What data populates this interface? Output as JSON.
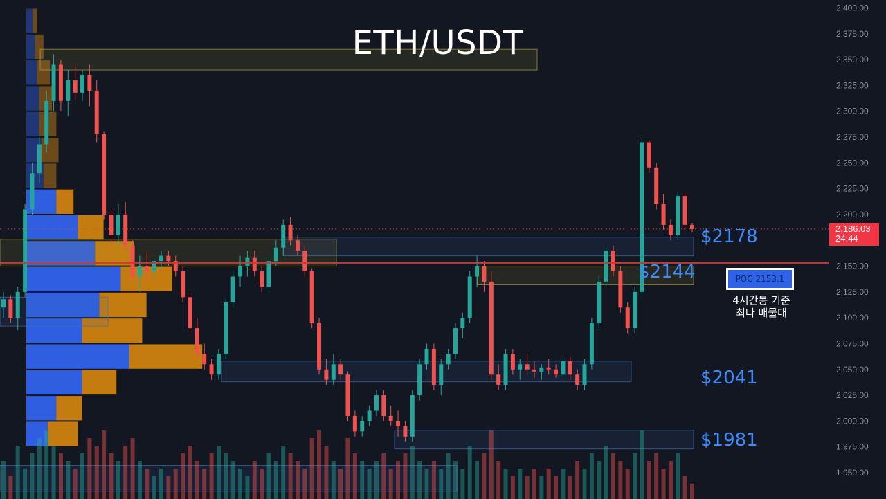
{
  "title": "ETH/USDT",
  "current_price": {
    "label": "2,186.03",
    "countdown": "24:44",
    "color": "#f23645"
  },
  "level_labels": [
    {
      "text": "$2178",
      "price": 2178
    },
    {
      "text": "$2144",
      "price": 2144
    },
    {
      "text": "$2041",
      "price": 2041
    },
    {
      "text": "$1981",
      "price": 1981
    }
  ],
  "poc": {
    "label": "POC  2153.1",
    "price": 2153.1,
    "note_line1": "4시간봉 기준",
    "note_line2": "최다 매물대"
  },
  "colors": {
    "background": "#131722",
    "up": "#26a69a",
    "down": "#ef5350",
    "poc_line": "#e0302d",
    "volume_profile_buy": "#2f5fe0",
    "volume_profile_sell": "#d8870f",
    "level_text": "#3d8bfd"
  },
  "chart_data": {
    "type": "candlestick",
    "title": "ETH/USDT",
    "ylim": [
      1935,
      2405
    ],
    "y_ticks": [
      "2,400.00",
      "2,375.00",
      "2,350.00",
      "2,325.00",
      "2,300.00",
      "2,275.00",
      "2,250.00",
      "2,225.00",
      "2,200.00",
      "2,175.00",
      "2,150.00",
      "2,125.00",
      "2,100.00",
      "2,075.00",
      "2,050.00",
      "2,025.00",
      "2,000.00",
      "1,975.00",
      "1,950.00"
    ],
    "y_tick_values": [
      2400,
      2375,
      2350,
      2325,
      2300,
      2275,
      2250,
      2225,
      2200,
      2175,
      2150,
      2125,
      2100,
      2075,
      2050,
      2025,
      2000,
      1975,
      1950
    ],
    "grid": false,
    "candles": [
      [
        2110,
        2125,
        2100,
        2118
      ],
      [
        2118,
        2122,
        2095,
        2100
      ],
      [
        2100,
        2130,
        2088,
        2125
      ],
      [
        2125,
        2210,
        2120,
        2205
      ],
      [
        2205,
        2250,
        2200,
        2240
      ],
      [
        2240,
        2275,
        2230,
        2268
      ],
      [
        2268,
        2320,
        2260,
        2310
      ],
      [
        2310,
        2355,
        2300,
        2345
      ],
      [
        2345,
        2350,
        2300,
        2310
      ],
      [
        2310,
        2340,
        2295,
        2330
      ],
      [
        2330,
        2345,
        2310,
        2318
      ],
      [
        2318,
        2340,
        2310,
        2335
      ],
      [
        2335,
        2345,
        2305,
        2320
      ],
      [
        2320,
        2330,
        2270,
        2278
      ],
      [
        2278,
        2280,
        2195,
        2200
      ],
      [
        2200,
        2205,
        2170,
        2180
      ],
      [
        2180,
        2210,
        2170,
        2200
      ],
      [
        2200,
        2212,
        2165,
        2170
      ],
      [
        2170,
        2175,
        2135,
        2140
      ],
      [
        2140,
        2160,
        2125,
        2150
      ],
      [
        2150,
        2165,
        2135,
        2145
      ],
      [
        2145,
        2158,
        2140,
        2155
      ],
      [
        2155,
        2165,
        2148,
        2160
      ],
      [
        2160,
        2165,
        2150,
        2155
      ],
      [
        2155,
        2160,
        2140,
        2145
      ],
      [
        2145,
        2150,
        2115,
        2120
      ],
      [
        2120,
        2125,
        2085,
        2090
      ],
      [
        2090,
        2100,
        2060,
        2065
      ],
      [
        2065,
        2075,
        2050,
        2055
      ],
      [
        2055,
        2060,
        2040,
        2045
      ],
      [
        2045,
        2070,
        2040,
        2065
      ],
      [
        2065,
        2120,
        2060,
        2115
      ],
      [
        2115,
        2145,
        2110,
        2140
      ],
      [
        2140,
        2160,
        2130,
        2150
      ],
      [
        2150,
        2165,
        2140,
        2158
      ],
      [
        2158,
        2165,
        2140,
        2145
      ],
      [
        2145,
        2150,
        2125,
        2130
      ],
      [
        2130,
        2160,
        2125,
        2155
      ],
      [
        2155,
        2175,
        2150,
        2168
      ],
      [
        2168,
        2195,
        2160,
        2190
      ],
      [
        2190,
        2198,
        2170,
        2175
      ],
      [
        2175,
        2180,
        2160,
        2165
      ],
      [
        2165,
        2170,
        2140,
        2145
      ],
      [
        2145,
        2148,
        2090,
        2095
      ],
      [
        2095,
        2100,
        2045,
        2050
      ],
      [
        2050,
        2060,
        2035,
        2040
      ],
      [
        2040,
        2065,
        2035,
        2055
      ],
      [
        2055,
        2060,
        2040,
        2045
      ],
      [
        2045,
        2048,
        2000,
        2005
      ],
      [
        2005,
        2010,
        1985,
        1990
      ],
      [
        1990,
        2005,
        1985,
        2000
      ],
      [
        2000,
        2015,
        1995,
        2010
      ],
      [
        2010,
        2030,
        2005,
        2025
      ],
      [
        2025,
        2030,
        2000,
        2005
      ],
      [
        2005,
        2015,
        1995,
        2000
      ],
      [
        2000,
        2010,
        1985,
        1995
      ],
      [
        1995,
        2000,
        1980,
        1985
      ],
      [
        1985,
        2030,
        1980,
        2025
      ],
      [
        2025,
        2060,
        2020,
        2055
      ],
      [
        2055,
        2075,
        2050,
        2070
      ],
      [
        2070,
        2075,
        2030,
        2035
      ],
      [
        2035,
        2060,
        2025,
        2055
      ],
      [
        2055,
        2070,
        2050,
        2065
      ],
      [
        2065,
        2095,
        2060,
        2090
      ],
      [
        2090,
        2105,
        2080,
        2100
      ],
      [
        2100,
        2145,
        2095,
        2140
      ],
      [
        2140,
        2160,
        2130,
        2150
      ],
      [
        2150,
        2155,
        2125,
        2135
      ],
      [
        2135,
        2145,
        2040,
        2045
      ],
      [
        2045,
        2055,
        2030,
        2035
      ],
      [
        2035,
        2070,
        2030,
        2065
      ],
      [
        2065,
        2070,
        2045,
        2050
      ],
      [
        2050,
        2060,
        2040,
        2055
      ],
      [
        2055,
        2065,
        2045,
        2050
      ],
      [
        2050,
        2058,
        2042,
        2048
      ],
      [
        2048,
        2055,
        2040,
        2052
      ],
      [
        2052,
        2060,
        2045,
        2050
      ],
      [
        2050,
        2055,
        2042,
        2045
      ],
      [
        2045,
        2062,
        2042,
        2058
      ],
      [
        2058,
        2062,
        2040,
        2045
      ],
      [
        2045,
        2050,
        2030,
        2035
      ],
      [
        2035,
        2060,
        2030,
        2055
      ],
      [
        2055,
        2100,
        2050,
        2095
      ],
      [
        2095,
        2140,
        2090,
        2135
      ],
      [
        2135,
        2170,
        2130,
        2165
      ],
      [
        2165,
        2170,
        2140,
        2145
      ],
      [
        2145,
        2150,
        2105,
        2110
      ],
      [
        2110,
        2115,
        2085,
        2090
      ],
      [
        2090,
        2130,
        2085,
        2125
      ],
      [
        2125,
        2275,
        2120,
        2270
      ],
      [
        2270,
        2272,
        2240,
        2245
      ],
      [
        2245,
        2250,
        2205,
        2210
      ],
      [
        2210,
        2220,
        2185,
        2190
      ],
      [
        2190,
        2195,
        2175,
        2180
      ],
      [
        2180,
        2222,
        2175,
        2218
      ],
      [
        2218,
        2222,
        2185,
        2190
      ],
      [
        2190,
        2192,
        2183,
        2186
      ]
    ],
    "volume": [
      5,
      3,
      7,
      4,
      6,
      8,
      9,
      7,
      6,
      5,
      4,
      6,
      8,
      7,
      9,
      6,
      5,
      7,
      8,
      5,
      4,
      3,
      4,
      3,
      4,
      6,
      7,
      5,
      4,
      6,
      7,
      6,
      5,
      4,
      3,
      5,
      4,
      6,
      5,
      7,
      6,
      5,
      4,
      8,
      9,
      7,
      5,
      4,
      8,
      6,
      5,
      4,
      5,
      6,
      4,
      5,
      6,
      7,
      5,
      4,
      5,
      4,
      6,
      5,
      4,
      7,
      5,
      6,
      9,
      5,
      4,
      3,
      4,
      3,
      4,
      3,
      4,
      3,
      4,
      3,
      5,
      4,
      6,
      5,
      7,
      6,
      5,
      4,
      6,
      9,
      5,
      6,
      4,
      5,
      6,
      3,
      2
    ],
    "volume_profile": {
      "bins": [
        2375,
        2350,
        2325,
        2300,
        2275,
        2250,
        2225,
        2200,
        2175,
        2150,
        2125,
        2100,
        2075,
        2050,
        2025,
        2000,
        1975
      ],
      "buy": [
        1.5,
        2,
        2.5,
        3,
        3,
        3.5,
        4,
        7,
        12,
        16,
        22,
        17,
        13,
        24,
        13,
        7,
        5
      ],
      "sell": [
        1,
        2,
        3,
        3,
        4,
        4,
        3,
        4,
        6,
        9,
        12,
        11,
        14,
        17,
        8,
        6,
        7
      ]
    },
    "levels": [
      2178,
      2144,
      2041,
      1981
    ],
    "poc": 2153.1,
    "current_price": 2186.03
  }
}
